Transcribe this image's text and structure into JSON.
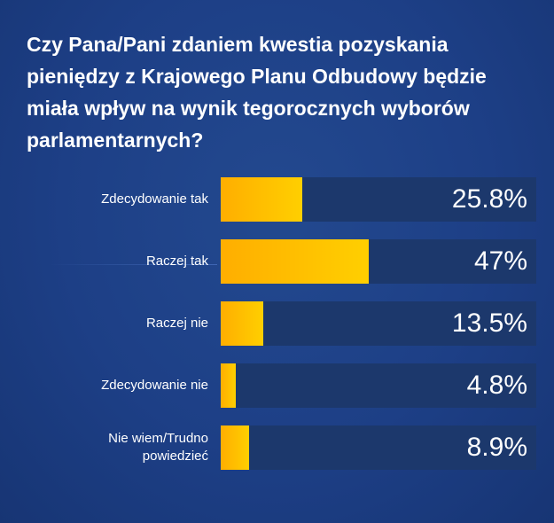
{
  "title": "Czy Pana/Pani zdaniem kwestia pozyskania pieniędzy z Krajowego Planu Odbudowy będzie miała wpływ na wynik tegorocznych wyborów parlamentarnych?",
  "colors": {
    "bar": "#ffc400",
    "track": "#1c386c",
    "background": "#1d3f86"
  },
  "chart_data": {
    "type": "bar",
    "orientation": "horizontal",
    "title": "Czy Pana/Pani zdaniem kwestia pozyskania pieniędzy z Krajowego Planu Odbudowy będzie miała wpływ na wynik tegorocznych wyborów parlamentarnych?",
    "categories": [
      "Zdecydowanie tak",
      "Raczej tak",
      "Raczej nie",
      "Zdecydowanie nie",
      "Nie wiem/Trudno powiedzieć"
    ],
    "values": [
      25.8,
      47,
      13.5,
      4.8,
      8.9
    ],
    "value_labels": [
      "25.8%",
      "47%",
      "13.5%",
      "4.8%",
      "8.9%"
    ],
    "xlim": [
      0,
      100
    ],
    "grid": false,
    "legend": "none"
  }
}
